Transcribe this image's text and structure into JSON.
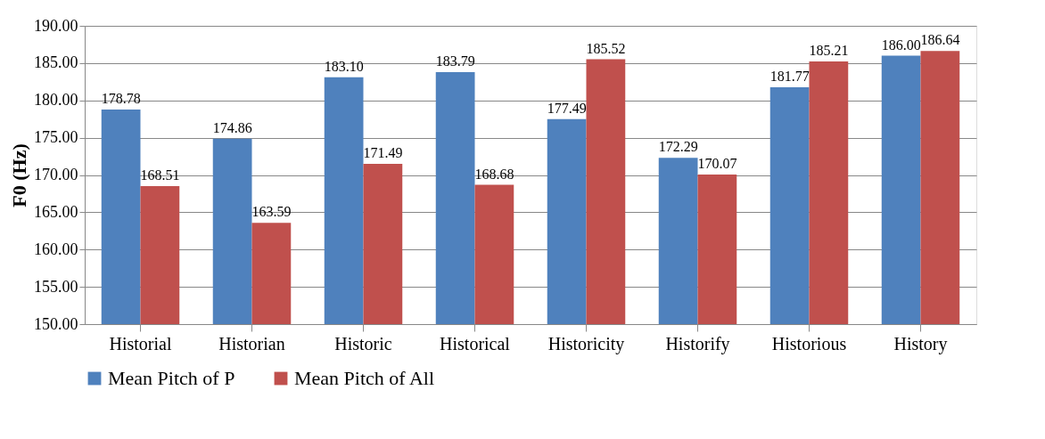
{
  "chart_data": {
    "type": "bar",
    "ylabel": "F0 (Hz)",
    "categories": [
      "Historial",
      "Historian",
      "Historic",
      "Historical",
      "Historicity",
      "Historify",
      "Historious",
      "History"
    ],
    "series": [
      {
        "name": "Mean Pitch of P",
        "color": "#4f81bd",
        "values": [
          178.78,
          174.86,
          183.1,
          183.79,
          177.49,
          172.29,
          181.77,
          186.0
        ],
        "value_labels": [
          "178.78",
          "174.86",
          "183.10",
          "183.79",
          "177.49",
          "172.29",
          "181.77",
          "186.00"
        ]
      },
      {
        "name": "Mean Pitch of All",
        "color": "#c0504d",
        "values": [
          168.51,
          163.59,
          171.49,
          168.68,
          185.52,
          170.07,
          185.21,
          186.64
        ],
        "value_labels": [
          "168.51",
          "163.59",
          "171.49",
          "168.68",
          "185.52",
          "170.07",
          "185.21",
          "186.64"
        ]
      }
    ],
    "ylim": [
      150,
      190
    ],
    "yticks": [
      {
        "value": 150,
        "label": "150.00"
      },
      {
        "value": 155,
        "label": "155.00"
      },
      {
        "value": 160,
        "label": "160.00"
      },
      {
        "value": 165,
        "label": "165.00"
      },
      {
        "value": 170,
        "label": "170.00"
      },
      {
        "value": 175,
        "label": "175.00"
      },
      {
        "value": 180,
        "label": "180.00"
      },
      {
        "value": 185,
        "label": "185.00"
      },
      {
        "value": 190,
        "label": "190.00"
      }
    ],
    "grid": "y",
    "legend": "bottom"
  }
}
